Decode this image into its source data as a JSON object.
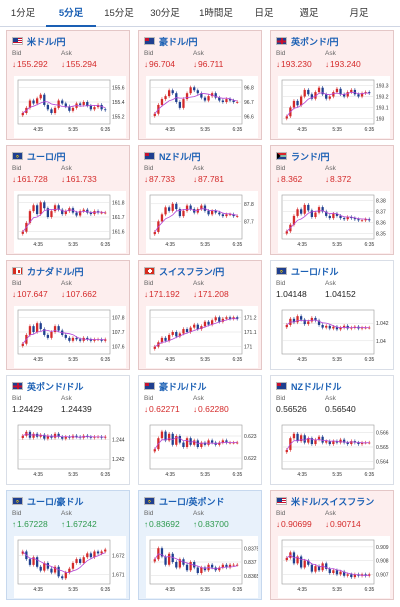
{
  "tabs": [
    {
      "label": "1分足",
      "active": false
    },
    {
      "label": "5分足",
      "active": true
    },
    {
      "label": "15分足",
      "active": false
    },
    {
      "label": "30分足",
      "active": false
    },
    {
      "label": "1時間足",
      "active": false
    },
    {
      "label": "日足",
      "active": false
    },
    {
      "label": "週足",
      "active": false
    },
    {
      "label": "月足",
      "active": false
    }
  ],
  "labels": {
    "bid": "Bid",
    "ask": "Ask"
  },
  "colors": {
    "down": "#d42a2a",
    "up": "#2e9a4e",
    "link": "#1a5fb4",
    "ma_line": "#b344d6"
  },
  "cards": [
    {
      "name": "米ドル/円",
      "flag": "us-flag",
      "bg": "pink",
      "dir": "down",
      "bid": "155.292",
      "ask": "155.294"
    },
    {
      "name": "豪ドル/円",
      "flag": "au-flag",
      "bg": "pink",
      "dir": "down",
      "bid": "96.704",
      "ask": "96.711"
    },
    {
      "name": "英ポンド/円",
      "flag": "gb-flag",
      "bg": "pink",
      "dir": "down",
      "bid": "193.230",
      "ask": "193.240"
    },
    {
      "name": "ユーロ/円",
      "flag": "eu-flag",
      "bg": "pink",
      "dir": "down",
      "bid": "161.728",
      "ask": "161.733"
    },
    {
      "name": "NZドル/円",
      "flag": "nz-flag",
      "bg": "pink",
      "dir": "down",
      "bid": "87.733",
      "ask": "87.781"
    },
    {
      "name": "ランド/円",
      "flag": "za-flag",
      "bg": "pink",
      "dir": "down",
      "bid": "8.362",
      "ask": "8.372"
    },
    {
      "name": "カナダドル/円",
      "flag": "ca-flag",
      "bg": "pink",
      "dir": "down",
      "bid": "107.647",
      "ask": "107.662"
    },
    {
      "name": "スイスフラン/円",
      "flag": "ch-flag",
      "bg": "pink",
      "dir": "down",
      "bid": "171.192",
      "ask": "171.208"
    },
    {
      "name": "ユーロ/ドル",
      "flag": "eu-flag",
      "bg": "white",
      "dir": "none",
      "bid": "1.04148",
      "ask": "1.04152"
    },
    {
      "name": "英ポンド/ドル",
      "flag": "gb-flag",
      "bg": "white",
      "dir": "none",
      "bid": "1.24429",
      "ask": "1.24439"
    },
    {
      "name": "豪ドル/ドル",
      "flag": "au-flag",
      "bg": "white",
      "dir": "down",
      "bid": "0.62271",
      "ask": "0.62280"
    },
    {
      "name": "NZドル/ドル",
      "flag": "nz-flag",
      "bg": "white",
      "dir": "none",
      "bid": "0.56526",
      "ask": "0.56540"
    },
    {
      "name": "ユーロ/豪ドル",
      "flag": "eu-flag",
      "bg": "blue",
      "dir": "up",
      "bid": "1.67228",
      "ask": "1.67242"
    },
    {
      "name": "ユーロ/英ポンド",
      "flag": "eu-flag",
      "bg": "blue",
      "dir": "up",
      "bid": "0.83692",
      "ask": "0.83700"
    },
    {
      "name": "米ドル/スイスフラン",
      "flag": "us-flag",
      "bg": "pink",
      "dir": "down",
      "bid": "0.90699",
      "ask": "0.90714"
    }
  ],
  "chart_data": [
    {
      "type": "candlestick",
      "x_ticks": [
        "4:35",
        "5:35",
        "6:35"
      ],
      "y_ticks": [
        "155.6",
        "155.4",
        "155.2"
      ],
      "ylim": [
        155.1,
        155.7
      ],
      "closes": [
        155.25,
        155.32,
        155.42,
        155.38,
        155.45,
        155.5,
        155.36,
        155.3,
        155.25,
        155.32,
        155.42,
        155.38,
        155.34,
        155.28,
        155.32,
        155.38,
        155.36,
        155.4,
        155.35,
        155.3,
        155.33,
        155.36,
        155.3,
        155.29
      ]
    },
    {
      "type": "candlestick",
      "x_ticks": [
        "4:35",
        "5:35",
        "6:35"
      ],
      "y_ticks": [
        "96.8",
        "96.7",
        "96.6"
      ],
      "ylim": [
        96.55,
        96.85
      ],
      "closes": [
        96.62,
        96.68,
        96.72,
        96.74,
        96.78,
        96.76,
        96.7,
        96.66,
        96.72,
        96.76,
        96.8,
        96.78,
        96.76,
        96.73,
        96.71,
        96.74,
        96.76,
        96.73,
        96.71,
        96.7,
        96.72,
        96.71,
        96.7,
        96.7
      ]
    },
    {
      "type": "candlestick",
      "x_ticks": [
        "4:35",
        "5:35",
        "6:35"
      ],
      "y_ticks": [
        "193.3",
        "193.2",
        "193.1",
        "193"
      ],
      "ylim": [
        192.95,
        193.35
      ],
      "closes": [
        193.02,
        193.1,
        193.16,
        193.12,
        193.2,
        193.26,
        193.22,
        193.18,
        193.24,
        193.28,
        193.22,
        193.18,
        193.2,
        193.24,
        193.27,
        193.22,
        193.2,
        193.24,
        193.26,
        193.22,
        193.2,
        193.23,
        193.24,
        193.23
      ]
    },
    {
      "type": "candlestick",
      "x_ticks": [
        "4:35",
        "5:35",
        "6:35"
      ],
      "y_ticks": [
        "161.8",
        "161.7",
        "161.6"
      ],
      "ylim": [
        161.55,
        161.85
      ],
      "closes": [
        161.6,
        161.66,
        161.74,
        161.78,
        161.72,
        161.8,
        161.76,
        161.7,
        161.74,
        161.78,
        161.75,
        161.72,
        161.74,
        161.76,
        161.73,
        161.71,
        161.74,
        161.75,
        161.73,
        161.72,
        161.74,
        161.73,
        161.73,
        161.73
      ]
    },
    {
      "type": "candlestick",
      "x_ticks": [
        "4:35",
        "5:35",
        "6:35"
      ],
      "y_ticks": [
        "87.8",
        "87.7"
      ],
      "ylim": [
        87.6,
        87.85
      ],
      "closes": [
        87.64,
        87.7,
        87.74,
        87.78,
        87.76,
        87.8,
        87.77,
        87.73,
        87.76,
        87.79,
        87.77,
        87.75,
        87.77,
        87.79,
        87.76,
        87.74,
        87.76,
        87.75,
        87.74,
        87.73,
        87.74,
        87.74,
        87.73,
        87.73
      ]
    },
    {
      "type": "candlestick",
      "x_ticks": [
        "4:35",
        "5:35",
        "6:35"
      ],
      "y_ticks": [
        "8.38",
        "8.37",
        "8.36",
        "8.35"
      ],
      "ylim": [
        8.345,
        8.385
      ],
      "closes": [
        8.352,
        8.358,
        8.366,
        8.372,
        8.368,
        8.376,
        8.371,
        8.365,
        8.369,
        8.374,
        8.37,
        8.366,
        8.364,
        8.368,
        8.366,
        8.364,
        8.363,
        8.365,
        8.364,
        8.363,
        8.362,
        8.362,
        8.363,
        8.362
      ]
    },
    {
      "type": "candlestick",
      "x_ticks": [
        "4:35",
        "5:35",
        "6:35"
      ],
      "y_ticks": [
        "107.8",
        "107.7",
        "107.6"
      ],
      "ylim": [
        107.55,
        107.85
      ],
      "closes": [
        107.62,
        107.68,
        107.74,
        107.7,
        107.76,
        107.72,
        107.68,
        107.66,
        107.7,
        107.74,
        107.71,
        107.68,
        107.66,
        107.64,
        107.66,
        107.65,
        107.64,
        107.66,
        107.65,
        107.64,
        107.65,
        107.65,
        107.64,
        107.65
      ]
    },
    {
      "type": "candlestick",
      "x_ticks": [
        "4:35",
        "5:35",
        "6:35"
      ],
      "y_ticks": [
        "171.2",
        "171.1",
        "171"
      ],
      "ylim": [
        170.95,
        171.25
      ],
      "closes": [
        171.0,
        171.03,
        171.06,
        171.04,
        171.08,
        171.1,
        171.07,
        171.09,
        171.12,
        171.1,
        171.13,
        171.15,
        171.12,
        171.14,
        171.17,
        171.15,
        171.18,
        171.2,
        171.17,
        171.19,
        171.2,
        171.19,
        171.2,
        171.19
      ]
    },
    {
      "type": "candlestick",
      "x_ticks": [
        "4:35",
        "5:35",
        "6:35"
      ],
      "y_ticks": [
        "1.042",
        "1.04"
      ],
      "ylim": [
        1.0385,
        1.0435
      ],
      "closes": [
        1.0418,
        1.0425,
        1.0421,
        1.0428,
        1.0424,
        1.0419,
        1.0422,
        1.0426,
        1.0423,
        1.0418,
        1.0415,
        1.0417,
        1.0414,
        1.0416,
        1.0413,
        1.0415,
        1.0417,
        1.0414,
        1.0415,
        1.0416,
        1.0414,
        1.0415,
        1.0415,
        1.0415
      ]
    },
    {
      "type": "candlestick",
      "x_ticks": [
        "4:35",
        "5:35",
        "6:35"
      ],
      "y_ticks": [
        "1.244",
        "1.242"
      ],
      "ylim": [
        1.241,
        1.2455
      ],
      "closes": [
        1.2444,
        1.2448,
        1.2442,
        1.2446,
        1.2443,
        1.2445,
        1.2441,
        1.2444,
        1.2442,
        1.2446,
        1.2443,
        1.2441,
        1.2443,
        1.2442,
        1.2444,
        1.2443,
        1.2442,
        1.2444,
        1.2443,
        1.2442,
        1.2443,
        1.2443,
        1.2442,
        1.2443
      ]
    },
    {
      "type": "candlestick",
      "x_ticks": [
        "4:35",
        "5:35",
        "6:35"
      ],
      "y_ticks": [
        "0.623",
        "0.622"
      ],
      "ylim": [
        0.6215,
        0.6235
      ],
      "closes": [
        0.6224,
        0.6229,
        0.6232,
        0.6228,
        0.6231,
        0.6226,
        0.623,
        0.6227,
        0.6225,
        0.6229,
        0.6226,
        0.6228,
        0.6225,
        0.6227,
        0.6226,
        0.6228,
        0.6227,
        0.6226,
        0.6227,
        0.6228,
        0.6227,
        0.6227,
        0.6227,
        0.6227
      ]
    },
    {
      "type": "candlestick",
      "x_ticks": [
        "4:35",
        "5:35",
        "6:35"
      ],
      "y_ticks": [
        "0.566",
        "0.565",
        "0.564"
      ],
      "ylim": [
        0.5635,
        0.5665
      ],
      "closes": [
        0.5648,
        0.5656,
        0.5659,
        0.5654,
        0.5658,
        0.5653,
        0.5656,
        0.5652,
        0.5655,
        0.5657,
        0.5653,
        0.5654,
        0.5652,
        0.5654,
        0.5653,
        0.5655,
        0.5653,
        0.5652,
        0.5654,
        0.5653,
        0.5652,
        0.5653,
        0.5653,
        0.5653
      ]
    },
    {
      "type": "candlestick",
      "x_ticks": [
        "4:35",
        "5:35",
        "6:35"
      ],
      "y_ticks": [
        "1.672",
        "1.671"
      ],
      "ylim": [
        1.6705,
        1.6728
      ],
      "closes": [
        1.6722,
        1.6718,
        1.6715,
        1.6719,
        1.6714,
        1.6712,
        1.6716,
        1.6713,
        1.6711,
        1.6714,
        1.6709,
        1.6708,
        1.6711,
        1.6713,
        1.6716,
        1.6718,
        1.6716,
        1.6719,
        1.6721,
        1.6719,
        1.6722,
        1.6721,
        1.6722,
        1.6723
      ]
    },
    {
      "type": "candlestick",
      "x_ticks": [
        "4:35",
        "5:35",
        "6:35"
      ],
      "y_ticks": [
        "0.8375",
        "0.837",
        "0.8365"
      ],
      "ylim": [
        0.8362,
        0.8378
      ],
      "closes": [
        0.8371,
        0.8375,
        0.8372,
        0.8369,
        0.8373,
        0.837,
        0.8368,
        0.8371,
        0.8369,
        0.8367,
        0.837,
        0.8368,
        0.8366,
        0.8368,
        0.8367,
        0.8369,
        0.8368,
        0.8367,
        0.8368,
        0.8369,
        0.8368,
        0.8369,
        0.8369,
        0.8369
      ]
    },
    {
      "type": "candlestick",
      "x_ticks": [
        "4:35",
        "5:35",
        "6:35"
      ],
      "y_ticks": [
        "0.909",
        "0.908",
        "0.907"
      ],
      "ylim": [
        0.9063,
        0.9095
      ],
      "closes": [
        0.9082,
        0.9086,
        0.9078,
        0.9083,
        0.9075,
        0.908,
        0.9077,
        0.9072,
        0.9076,
        0.9073,
        0.9078,
        0.9074,
        0.9071,
        0.9073,
        0.907,
        0.9072,
        0.9069,
        0.907,
        0.9068,
        0.907,
        0.9069,
        0.907,
        0.9069,
        0.907
      ]
    }
  ]
}
